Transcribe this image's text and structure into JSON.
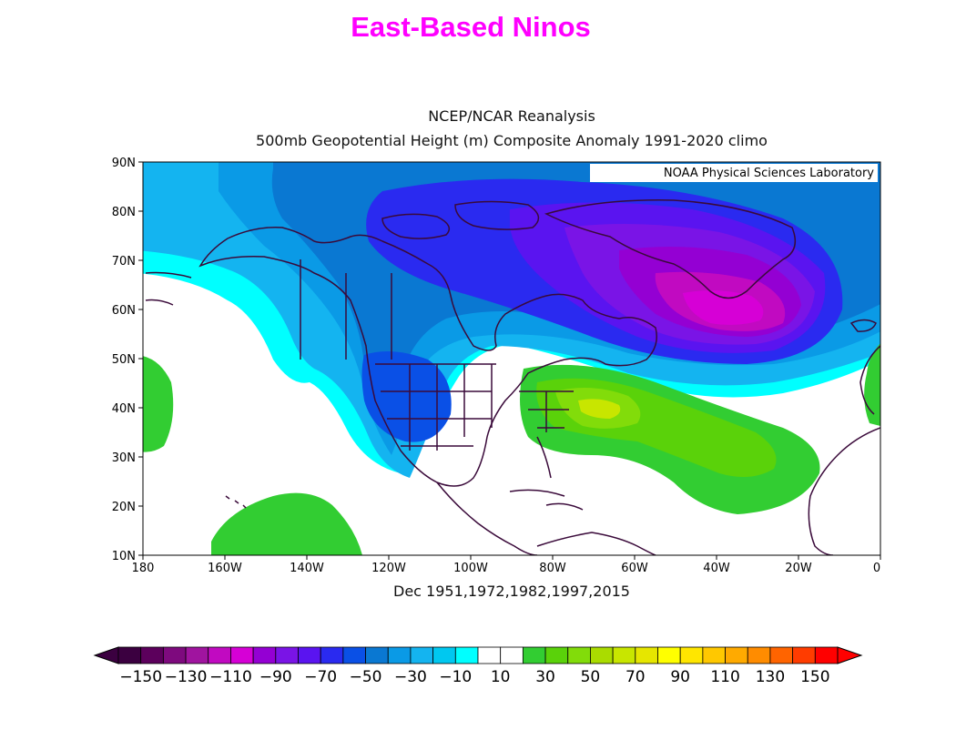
{
  "page": {
    "title": "East-Based Ninos",
    "title_color": "#ff00ff"
  },
  "map": {
    "subtitle_line1": "NCEP/NCAR Reanalysis",
    "subtitle_line2": "500mb Geopotential Height (m) Composite Anomaly 1991-2020 climo",
    "credit": "NOAA Physical Sciences Laboratory",
    "footer": "Dec 1951,1972,1982,1997,2015",
    "lat_labels": [
      "90N",
      "80N",
      "70N",
      "60N",
      "50N",
      "40N",
      "30N",
      "20N",
      "10N"
    ],
    "lon_labels": [
      "180",
      "160W",
      "140W",
      "120W",
      "100W",
      "80W",
      "60W",
      "40W",
      "20W",
      "0"
    ],
    "features": [
      "negative anomaly centre near Greenland / southern tip",
      "negative anomaly over western United States",
      "positive anomaly over eastern United States and western Atlantic",
      "positive anomaly in subtropical central Pacific",
      "positive anomaly near Europe / eastern Atlantic"
    ]
  },
  "colorbar": {
    "labels": [
      "-150",
      "-130",
      "-110",
      "-90",
      "-70",
      "-50",
      "-30",
      "-10",
      "10",
      "30",
      "50",
      "70",
      "90",
      "110",
      "130",
      "150"
    ],
    "colors": [
      "#3b0040",
      "#5c005c",
      "#7e0a7e",
      "#a0149f",
      "#c10ac1",
      "#d600d6",
      "#9400d3",
      "#7a14e6",
      "#5a14f0",
      "#2a2af0",
      "#0a50e6",
      "#0a78d2",
      "#0a9ae6",
      "#14b4f0",
      "#00c8f0",
      "#00ffff",
      "#ffffff",
      "#ffffff",
      "#32cd32",
      "#5ad20a",
      "#82dc0a",
      "#aadc00",
      "#c8e600",
      "#e6e600",
      "#ffff00",
      "#ffe600",
      "#ffc800",
      "#ffaa00",
      "#ff8c00",
      "#ff6400",
      "#ff3c00",
      "#ff0000"
    ]
  }
}
